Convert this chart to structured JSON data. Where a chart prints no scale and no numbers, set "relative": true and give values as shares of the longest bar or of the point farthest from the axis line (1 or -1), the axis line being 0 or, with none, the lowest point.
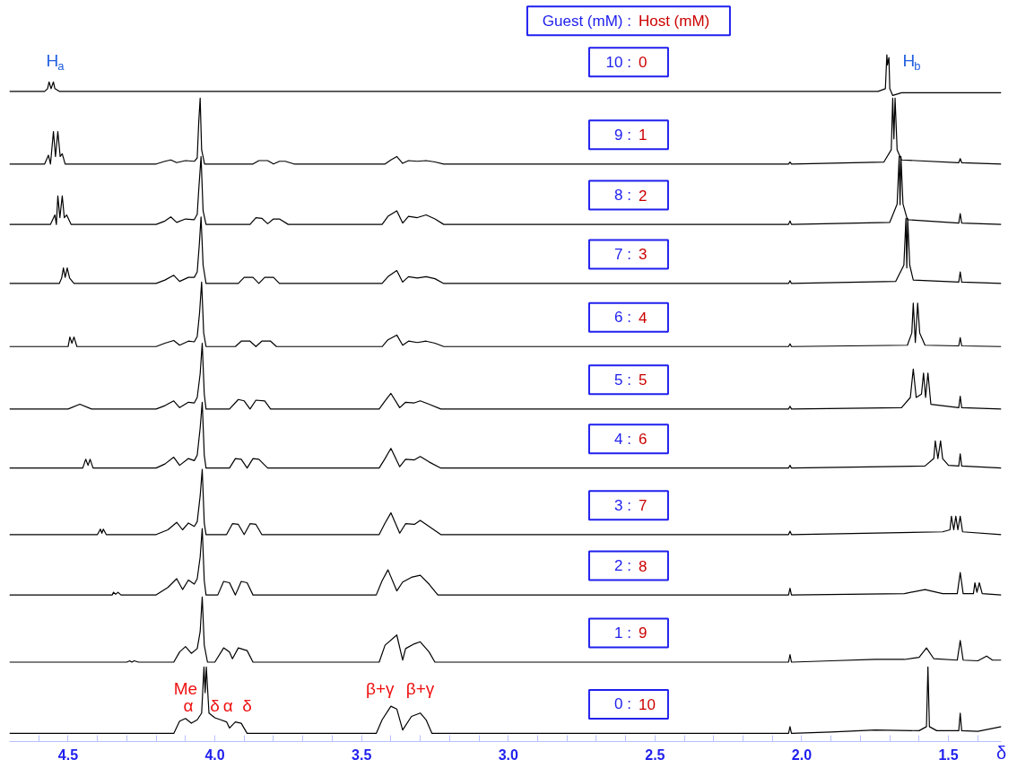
{
  "chart_data": {
    "type": "line",
    "relative": true,
    "title": "Guest (mM) : Host (mM)",
    "xlabel": "δ",
    "color": "#000000",
    "xlim": [
      4.7,
      1.32
    ],
    "xticks": [
      {
        "value": 4.6,
        "label": null
      },
      4.5,
      {
        "value": 4.4,
        "label": null
      },
      {
        "value": 4.3,
        "label": null
      },
      {
        "value": 4.2,
        "label": null
      },
      {
        "value": 4.1,
        "label": null
      },
      {
        "value": 4.0,
        "label": "4.0"
      },
      {
        "value": 3.9,
        "label": null
      },
      {
        "value": 3.8,
        "label": null
      },
      {
        "value": 3.7,
        "label": null
      },
      {
        "value": 3.6,
        "label": null
      },
      3.5,
      {
        "value": 3.4,
        "label": null
      },
      {
        "value": 3.3,
        "label": null
      },
      {
        "value": 3.2,
        "label": null
      },
      {
        "value": 3.1,
        "label": null
      },
      {
        "value": 3.0,
        "label": "3.0"
      },
      {
        "value": 2.9,
        "label": null
      },
      {
        "value": 2.8,
        "label": null
      },
      {
        "value": 2.7,
        "label": null
      },
      {
        "value": 2.6,
        "label": null
      },
      2.5,
      {
        "value": 2.4,
        "label": null
      },
      {
        "value": 2.3,
        "label": null
      },
      {
        "value": 2.2,
        "label": null
      },
      {
        "value": 2.1,
        "label": null
      },
      {
        "value": 2.0,
        "label": "2.0"
      },
      {
        "value": 1.9,
        "label": null
      },
      {
        "value": 1.8,
        "label": null
      },
      {
        "value": 1.7,
        "label": null
      },
      {
        "value": 1.6,
        "label": null
      },
      1.5,
      {
        "value": 1.4,
        "label": null
      }
    ],
    "annotations": [
      "H$_{a}$",
      "H$_{b}$",
      "Me",
      "α",
      "δ",
      "α",
      "δ",
      "β+γ",
      "β+γ"
    ],
    "series": [
      {
        "name": "10 : 0",
        "x": [
          4.7,
          4.58,
          4.57,
          4.565,
          4.558,
          4.55,
          4.545,
          4.53,
          1.74,
          1.715,
          1.71,
          1.708,
          1.703,
          1.7,
          1.69,
          1.66,
          1.32
        ],
        "values": [
          0.946,
          0.946,
          0.95,
          0.96,
          0.95,
          0.96,
          0.95,
          0.946,
          0.946,
          0.95,
          1.0,
          0.985,
          0.996,
          0.95,
          0.94,
          0.944,
          0.944
        ]
      },
      {
        "name": "9 : 1",
        "x": [
          4.7,
          4.58,
          4.567,
          4.56,
          4.55,
          4.543,
          4.535,
          4.527,
          4.52,
          4.51,
          4.2,
          4.17,
          4.15,
          4.13,
          4.1,
          4.07,
          4.06,
          4.055,
          4.05,
          4.045,
          4.035,
          3.87,
          3.85,
          3.82,
          3.8,
          3.78,
          3.76,
          3.73,
          3.71,
          3.42,
          3.4,
          3.38,
          3.36,
          3.34,
          3.31,
          3.28,
          3.25,
          3.22,
          2.045,
          2.04,
          2.035,
          1.72,
          1.695,
          1.69,
          1.686,
          1.682,
          1.675,
          1.66,
          1.465,
          1.46,
          1.455,
          1.32
        ],
        "values": [
          0.839,
          0.839,
          0.852,
          0.839,
          0.887,
          0.85,
          0.887,
          0.85,
          0.854,
          0.839,
          0.839,
          0.843,
          0.845,
          0.841,
          0.844,
          0.843,
          0.848,
          0.9,
          0.936,
          0.86,
          0.839,
          0.839,
          0.844,
          0.844,
          0.839,
          0.843,
          0.843,
          0.839,
          0.839,
          0.839,
          0.845,
          0.85,
          0.84,
          0.844,
          0.843,
          0.844,
          0.842,
          0.839,
          0.839,
          0.842,
          0.839,
          0.842,
          0.86,
          0.936,
          0.876,
          0.936,
          0.86,
          0.845,
          0.841,
          0.847,
          0.841,
          0.839
        ]
      },
      {
        "name": "8 : 2",
        "x": [
          4.7,
          4.56,
          4.545,
          4.54,
          4.535,
          4.528,
          4.52,
          4.513,
          4.505,
          4.49,
          4.2,
          4.17,
          4.15,
          4.13,
          4.1,
          4.07,
          4.06,
          4.055,
          4.047,
          4.04,
          4.03,
          3.88,
          3.86,
          3.84,
          3.82,
          3.8,
          3.78,
          3.75,
          3.73,
          3.43,
          3.41,
          3.38,
          3.36,
          3.34,
          3.31,
          3.28,
          3.25,
          3.22,
          2.045,
          2.04,
          2.035,
          1.7,
          1.675,
          1.668,
          1.665,
          1.662,
          1.655,
          1.64,
          1.465,
          1.46,
          1.455,
          1.32
        ],
        "values": [
          0.75,
          0.75,
          0.764,
          0.75,
          0.792,
          0.76,
          0.792,
          0.76,
          0.764,
          0.75,
          0.75,
          0.755,
          0.761,
          0.753,
          0.758,
          0.757,
          0.765,
          0.8,
          0.85,
          0.77,
          0.75,
          0.75,
          0.76,
          0.759,
          0.751,
          0.758,
          0.758,
          0.75,
          0.75,
          0.75,
          0.762,
          0.77,
          0.752,
          0.762,
          0.76,
          0.764,
          0.758,
          0.75,
          0.75,
          0.755,
          0.75,
          0.753,
          0.78,
          0.85,
          0.779,
          0.85,
          0.78,
          0.757,
          0.752,
          0.766,
          0.752,
          0.75
        ]
      },
      {
        "name": "7 : 3",
        "x": [
          4.7,
          4.53,
          4.522,
          4.516,
          4.51,
          4.503,
          4.495,
          4.48,
          4.2,
          4.17,
          4.14,
          4.12,
          4.09,
          4.07,
          4.06,
          4.053,
          4.047,
          4.04,
          4.03,
          3.92,
          3.9,
          3.87,
          3.85,
          3.83,
          3.8,
          3.78,
          3.76,
          3.43,
          3.41,
          3.38,
          3.36,
          3.34,
          3.31,
          3.28,
          3.25,
          3.22,
          2.045,
          2.04,
          2.035,
          1.68,
          1.652,
          1.645,
          1.642,
          1.639,
          1.632,
          1.62,
          1.465,
          1.46,
          1.455,
          1.32
        ],
        "values": [
          0.663,
          0.663,
          0.671,
          0.686,
          0.672,
          0.686,
          0.671,
          0.663,
          0.663,
          0.668,
          0.675,
          0.666,
          0.672,
          0.672,
          0.68,
          0.72,
          0.761,
          0.69,
          0.663,
          0.663,
          0.672,
          0.672,
          0.663,
          0.672,
          0.672,
          0.663,
          0.663,
          0.663,
          0.673,
          0.682,
          0.665,
          0.673,
          0.671,
          0.673,
          0.67,
          0.663,
          0.663,
          0.667,
          0.663,
          0.666,
          0.69,
          0.759,
          0.686,
          0.759,
          0.69,
          0.668,
          0.665,
          0.68,
          0.665,
          0.663
        ]
      },
      {
        "name": "6 : 4",
        "x": [
          4.7,
          4.5,
          4.494,
          4.487,
          4.48,
          4.47,
          4.2,
          4.17,
          4.14,
          4.12,
          4.09,
          4.07,
          4.06,
          4.052,
          4.045,
          4.038,
          4.03,
          3.93,
          3.91,
          3.88,
          3.86,
          3.84,
          3.81,
          3.79,
          3.77,
          3.43,
          3.41,
          3.38,
          3.36,
          3.34,
          3.31,
          3.28,
          3.25,
          3.22,
          2.045,
          2.04,
          2.035,
          1.64,
          1.625,
          1.62,
          1.613,
          1.605,
          1.598,
          1.58,
          1.465,
          1.46,
          1.455,
          1.32
        ],
        "values": [
          0.57,
          0.57,
          0.584,
          0.575,
          0.584,
          0.57,
          0.57,
          0.575,
          0.579,
          0.572,
          0.578,
          0.577,
          0.585,
          0.62,
          0.665,
          0.59,
          0.57,
          0.57,
          0.578,
          0.578,
          0.57,
          0.578,
          0.578,
          0.57,
          0.57,
          0.57,
          0.58,
          0.587,
          0.572,
          0.578,
          0.576,
          0.578,
          0.575,
          0.57,
          0.57,
          0.574,
          0.57,
          0.572,
          0.59,
          0.634,
          0.576,
          0.634,
          0.59,
          0.572,
          0.571,
          0.583,
          0.571,
          0.57
        ]
      },
      {
        "name": "5 : 5",
        "x": [
          4.7,
          4.5,
          4.46,
          4.42,
          4.2,
          4.17,
          4.14,
          4.12,
          4.09,
          4.07,
          4.06,
          4.05,
          4.043,
          4.036,
          4.03,
          3.95,
          3.92,
          3.9,
          3.88,
          3.86,
          3.83,
          3.81,
          3.79,
          3.44,
          3.42,
          3.4,
          3.37,
          3.35,
          3.32,
          3.3,
          3.27,
          3.23,
          2.045,
          2.04,
          2.035,
          1.66,
          1.63,
          1.62,
          1.61,
          1.592,
          1.585,
          1.578,
          1.57,
          1.56,
          1.465,
          1.46,
          1.455,
          1.32
        ],
        "values": [
          0.478,
          0.478,
          0.485,
          0.478,
          0.478,
          0.483,
          0.49,
          0.48,
          0.488,
          0.487,
          0.495,
          0.53,
          0.575,
          0.5,
          0.478,
          0.478,
          0.492,
          0.49,
          0.478,
          0.491,
          0.49,
          0.478,
          0.478,
          0.478,
          0.49,
          0.501,
          0.48,
          0.488,
          0.487,
          0.49,
          0.485,
          0.478,
          0.478,
          0.482,
          0.478,
          0.48,
          0.495,
          0.537,
          0.495,
          0.5,
          0.531,
          0.495,
          0.531,
          0.485,
          0.48,
          0.497,
          0.48,
          0.478
        ]
      },
      {
        "name": "4 : 6",
        "x": [
          4.7,
          4.45,
          4.44,
          4.432,
          4.425,
          4.415,
          4.2,
          4.17,
          4.14,
          4.12,
          4.09,
          4.07,
          4.06,
          4.05,
          4.043,
          4.036,
          4.03,
          3.95,
          3.93,
          3.91,
          3.89,
          3.87,
          3.85,
          3.82,
          3.8,
          3.44,
          3.42,
          3.4,
          3.37,
          3.35,
          3.32,
          3.3,
          3.27,
          3.23,
          2.045,
          2.04,
          2.035,
          1.58,
          1.55,
          1.545,
          1.536,
          1.527,
          1.52,
          1.5,
          1.465,
          1.46,
          1.455,
          1.32
        ],
        "values": [
          0.391,
          0.391,
          0.404,
          0.395,
          0.404,
          0.391,
          0.391,
          0.397,
          0.407,
          0.395,
          0.405,
          0.402,
          0.41,
          0.45,
          0.488,
          0.41,
          0.391,
          0.391,
          0.405,
          0.404,
          0.391,
          0.405,
          0.404,
          0.391,
          0.391,
          0.391,
          0.405,
          0.42,
          0.393,
          0.404,
          0.403,
          0.408,
          0.4,
          0.391,
          0.391,
          0.395,
          0.391,
          0.394,
          0.405,
          0.431,
          0.405,
          0.431,
          0.405,
          0.395,
          0.394,
          0.412,
          0.394,
          0.391
        ]
      },
      {
        "name": "3 : 7",
        "x": [
          4.7,
          4.4,
          4.39,
          4.385,
          4.38,
          4.37,
          4.2,
          4.16,
          4.13,
          4.11,
          4.09,
          4.07,
          4.06,
          4.05,
          4.043,
          4.036,
          4.03,
          3.96,
          3.94,
          3.92,
          3.9,
          3.88,
          3.86,
          3.84,
          3.82,
          3.44,
          3.42,
          3.4,
          3.37,
          3.35,
          3.32,
          3.3,
          3.27,
          3.23,
          2.045,
          2.04,
          2.035,
          1.52,
          1.495,
          1.49,
          1.482,
          1.475,
          1.468,
          1.46,
          1.452,
          1.32
        ],
        "values": [
          0.293,
          0.293,
          0.301,
          0.295,
          0.301,
          0.293,
          0.293,
          0.3,
          0.311,
          0.3,
          0.31,
          0.305,
          0.312,
          0.35,
          0.389,
          0.31,
          0.293,
          0.293,
          0.309,
          0.308,
          0.293,
          0.309,
          0.308,
          0.293,
          0.293,
          0.293,
          0.31,
          0.325,
          0.295,
          0.309,
          0.308,
          0.314,
          0.305,
          0.293,
          0.293,
          0.298,
          0.293,
          0.297,
          0.3,
          0.32,
          0.3,
          0.32,
          0.3,
          0.32,
          0.297,
          0.293
        ]
      },
      {
        "name": "2 : 8",
        "x": [
          4.7,
          4.35,
          4.345,
          4.338,
          4.33,
          4.32,
          4.2,
          4.16,
          4.13,
          4.11,
          4.09,
          4.07,
          4.06,
          4.05,
          4.043,
          4.036,
          4.03,
          3.99,
          3.97,
          3.95,
          3.93,
          3.91,
          3.89,
          3.87,
          3.85,
          3.45,
          3.43,
          3.41,
          3.38,
          3.36,
          3.33,
          3.3,
          3.27,
          3.24,
          2.045,
          2.04,
          2.035,
          1.65,
          1.58,
          1.52,
          1.47,
          1.46,
          1.45,
          1.415,
          1.41,
          1.403,
          1.395,
          1.385,
          1.32
        ],
        "values": [
          0.204,
          0.204,
          0.208,
          0.205,
          0.208,
          0.204,
          0.204,
          0.215,
          0.228,
          0.212,
          0.226,
          0.22,
          0.228,
          0.26,
          0.302,
          0.225,
          0.204,
          0.204,
          0.224,
          0.222,
          0.204,
          0.224,
          0.222,
          0.204,
          0.204,
          0.204,
          0.225,
          0.241,
          0.21,
          0.223,
          0.23,
          0.233,
          0.22,
          0.204,
          0.204,
          0.214,
          0.204,
          0.206,
          0.212,
          0.206,
          0.206,
          0.237,
          0.206,
          0.206,
          0.222,
          0.208,
          0.222,
          0.206,
          0.204
        ]
      },
      {
        "name": "1 : 9",
        "x": [
          4.7,
          4.3,
          4.29,
          4.283,
          4.275,
          4.26,
          4.14,
          4.12,
          4.1,
          4.08,
          4.06,
          4.05,
          4.043,
          4.036,
          4.025,
          4.0,
          3.97,
          3.95,
          3.94,
          3.92,
          3.89,
          3.87,
          3.44,
          3.42,
          3.38,
          3.36,
          3.35,
          3.32,
          3.3,
          3.27,
          3.25,
          2.045,
          2.04,
          2.035,
          1.9,
          1.75,
          1.65,
          1.6,
          1.575,
          1.55,
          1.47,
          1.46,
          1.45,
          1.4,
          1.37,
          1.35,
          1.32
        ],
        "values": [
          0.105,
          0.105,
          0.107,
          0.105,
          0.107,
          0.105,
          0.105,
          0.12,
          0.128,
          0.118,
          0.125,
          0.15,
          0.201,
          0.13,
          0.105,
          0.105,
          0.126,
          0.12,
          0.11,
          0.126,
          0.122,
          0.105,
          0.105,
          0.13,
          0.145,
          0.108,
          0.125,
          0.132,
          0.135,
          0.12,
          0.105,
          0.105,
          0.116,
          0.105,
          0.107,
          0.109,
          0.109,
          0.112,
          0.126,
          0.11,
          0.108,
          0.137,
          0.108,
          0.107,
          0.114,
          0.108,
          0.108
        ]
      },
      {
        "name": "0 : 10",
        "x": [
          4.7,
          4.14,
          4.12,
          4.1,
          4.08,
          4.06,
          4.045,
          4.037,
          4.033,
          4.029,
          4.02,
          4.0,
          3.98,
          3.96,
          3.95,
          3.93,
          3.91,
          3.89,
          3.45,
          3.43,
          3.4,
          3.38,
          3.36,
          3.33,
          3.3,
          3.28,
          3.26,
          2.045,
          2.04,
          2.035,
          1.9,
          1.75,
          1.6,
          1.575,
          1.57,
          1.565,
          1.54,
          1.465,
          1.46,
          1.455,
          1.4,
          1.32
        ],
        "values": [
          0,
          0,
          0.018,
          0.022,
          0.015,
          0.02,
          0.03,
          0.098,
          0.06,
          0.098,
          0.03,
          0.023,
          0.02,
          0.017,
          0.008,
          0.017,
          0.015,
          0,
          0,
          0.02,
          0.04,
          0.036,
          0.005,
          0.025,
          0.03,
          0.02,
          0,
          0,
          0.01,
          0,
          0.002,
          0.005,
          0.004,
          0.01,
          0.098,
          0.01,
          0.004,
          0.004,
          0.03,
          0.004,
          0.003,
          0.01
        ]
      }
    ]
  }
}
